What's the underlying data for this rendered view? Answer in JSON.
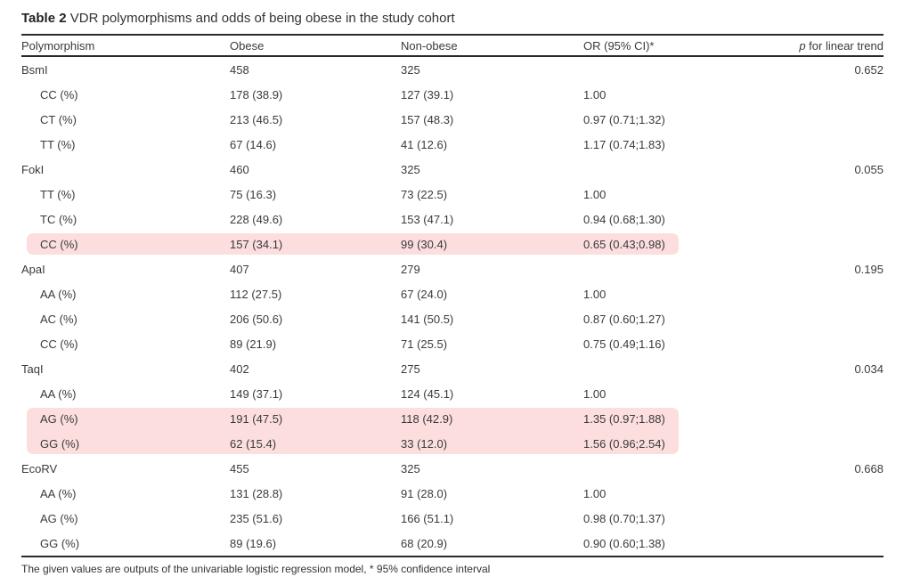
{
  "title": {
    "label": "Table 2",
    "text": "VDR polymorphisms and odds of being obese in the study cohort"
  },
  "table": {
    "columns": {
      "polymorphism": "Polymorphism",
      "obese": "Obese",
      "nonobese": "Non-obese",
      "or": "OR (95% CI)*",
      "p_italic": "p",
      "p_rest": " for linear trend"
    },
    "rows": [
      {
        "label": "BsmI",
        "obese": "458",
        "nonobese": "325",
        "or": "",
        "p": "0.652",
        "indent": false,
        "hl": "none"
      },
      {
        "label": "CC (%)",
        "obese": "178 (38.9)",
        "nonobese": "127 (39.1)",
        "or": "1.00",
        "p": "",
        "indent": true,
        "hl": "none"
      },
      {
        "label": "CT (%)",
        "obese": "213 (46.5)",
        "nonobese": "157 (48.3)",
        "or": "0.97 (0.71;1.32)",
        "p": "",
        "indent": true,
        "hl": "none"
      },
      {
        "label": "TT (%)",
        "obese": "67 (14.6)",
        "nonobese": "41 (12.6)",
        "or": "1.17 (0.74;1.83)",
        "p": "",
        "indent": true,
        "hl": "none"
      },
      {
        "label": "FokI",
        "obese": "460",
        "nonobese": "325",
        "or": "",
        "p": "0.055",
        "indent": false,
        "hl": "none"
      },
      {
        "label": "TT (%)",
        "obese": "75 (16.3)",
        "nonobese": "73 (22.5)",
        "or": "1.00",
        "p": "",
        "indent": true,
        "hl": "none"
      },
      {
        "label": "TC (%)",
        "obese": "228 (49.6)",
        "nonobese": "153 (47.1)",
        "or": "0.94 (0.68;1.30)",
        "p": "",
        "indent": true,
        "hl": "none"
      },
      {
        "label": "CC (%)",
        "obese": "157 (34.1)",
        "nonobese": "99 (30.4)",
        "or": "0.65 (0.43;0.98)",
        "p": "",
        "indent": true,
        "hl": "single"
      },
      {
        "label": "ApaI",
        "obese": "407",
        "nonobese": "279",
        "or": "",
        "p": "0.195",
        "indent": false,
        "hl": "none"
      },
      {
        "label": "AA (%)",
        "obese": "112 (27.5)",
        "nonobese": "67 (24.0)",
        "or": "1.00",
        "p": "",
        "indent": true,
        "hl": "none"
      },
      {
        "label": "AC (%)",
        "obese": "206 (50.6)",
        "nonobese": "141 (50.5)",
        "or": "0.87 (0.60;1.27)",
        "p": "",
        "indent": true,
        "hl": "none"
      },
      {
        "label": "CC (%)",
        "obese": "89 (21.9)",
        "nonobese": "71 (25.5)",
        "or": "0.75 (0.49;1.16)",
        "p": "",
        "indent": true,
        "hl": "none"
      },
      {
        "label": "TaqI",
        "obese": "402",
        "nonobese": "275",
        "or": "",
        "p": "0.034",
        "indent": false,
        "hl": "none"
      },
      {
        "label": "AA (%)",
        "obese": "149 (37.1)",
        "nonobese": "124 (45.1)",
        "or": "1.00",
        "p": "",
        "indent": true,
        "hl": "none"
      },
      {
        "label": "AG (%)",
        "obese": "191 (47.5)",
        "nonobose_typo_guard": "",
        "nonobese": "118 (42.9)",
        "or": "1.35 (0.97;1.88)",
        "p": "",
        "indent": true,
        "hl": "top"
      },
      {
        "label": "GG (%)",
        "obese": "62 (15.4)",
        "nonobese": "33 (12.0)",
        "or": "1.56 (0.96;2.54)",
        "p": "",
        "indent": true,
        "hl": "bottom"
      },
      {
        "label": "EcoRV",
        "obese": "455",
        "nonobese": "325",
        "or": "",
        "p": "0.668",
        "indent": false,
        "hl": "none"
      },
      {
        "label": "AA (%)",
        "obese": "131 (28.8)",
        "nonobese": "91 (28.0)",
        "or": "1.00",
        "p": "",
        "indent": true,
        "hl": "none"
      },
      {
        "label": "AG (%)",
        "obese": "235 (51.6)",
        "nonobese": "166 (51.1)",
        "or": "0.98 (0.70;1.37)",
        "p": "",
        "indent": true,
        "hl": "none"
      },
      {
        "label": "GG (%)",
        "obese": "89 (19.6)",
        "nonobese": "68 (20.9)",
        "or": "0.90 (0.60;1.38)",
        "p": "",
        "indent": true,
        "hl": "none"
      }
    ]
  },
  "footnote": "The given values are outputs of the univariable logistic regression model, * 95% confidence interval",
  "colors": {
    "highlight": "#fcdede",
    "rule": "#2a2a2a",
    "text": "#3a3a3a"
  }
}
